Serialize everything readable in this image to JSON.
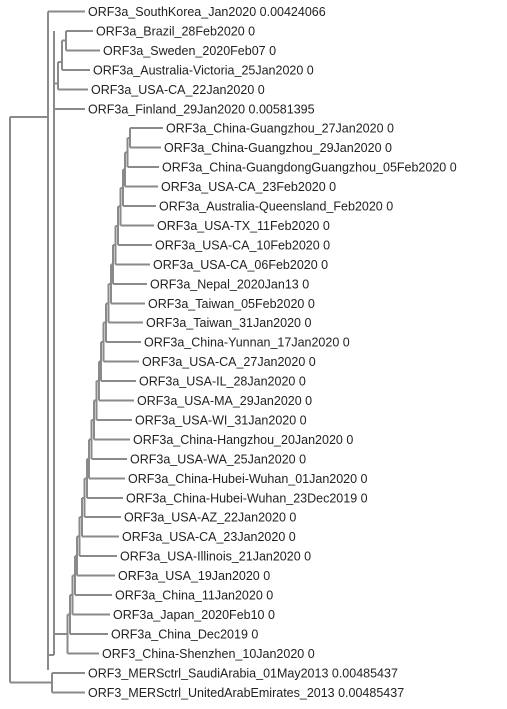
{
  "tree": {
    "leaves": [
      {
        "name": "ORF3a_SouthKorea_Jan2020",
        "value": "0.00424066"
      },
      {
        "name": "ORF3a_Brazil_28Feb2020",
        "value": "0"
      },
      {
        "name": "ORF3a_Sweden_2020Feb07",
        "value": "0"
      },
      {
        "name": "ORF3a_Australia-Victoria_25Jan2020",
        "value": "0"
      },
      {
        "name": "ORF3a_USA-CA_22Jan2020",
        "value": "0"
      },
      {
        "name": "ORF3a_Finland_29Jan2020",
        "value": "0.00581395"
      },
      {
        "name": "ORF3a_China-Guangzhou_27Jan2020",
        "value": "0"
      },
      {
        "name": "ORF3a_China-Guangzhou_29Jan2020",
        "value": "0"
      },
      {
        "name": "ORF3a_China-GuangdongGuangzhou_05Feb2020",
        "value": "0"
      },
      {
        "name": "ORF3a_USA-CA_23Feb2020",
        "value": "0"
      },
      {
        "name": "ORF3a_Australia-Queensland_Feb2020",
        "value": "0"
      },
      {
        "name": "ORF3a_USA-TX_11Feb2020",
        "value": "0"
      },
      {
        "name": "ORF3a_USA-CA_10Feb2020",
        "value": "0"
      },
      {
        "name": "ORF3a_USA-CA_06Feb2020",
        "value": "0"
      },
      {
        "name": "ORF3a_Nepal_2020Jan13",
        "value": "0"
      },
      {
        "name": "ORF3a_Taiwan_05Feb2020",
        "value": "0"
      },
      {
        "name": "ORF3a_Taiwan_31Jan2020",
        "value": "0"
      },
      {
        "name": "ORF3a_China-Yunnan_17Jan2020",
        "value": "0"
      },
      {
        "name": "ORF3a_USA-CA_27Jan2020",
        "value": "0"
      },
      {
        "name": "ORF3a_USA-IL_28Jan2020",
        "value": "0"
      },
      {
        "name": "ORF3a_USA-MA_29Jan2020",
        "value": "0"
      },
      {
        "name": "ORF3a_USA-WI_31Jan2020",
        "value": "0"
      },
      {
        "name": "ORF3a_China-Hangzhou_20Jan2020",
        "value": "0"
      },
      {
        "name": "ORF3a_USA-WA_25Jan2020",
        "value": "0"
      },
      {
        "name": "ORF3a_China-Hubei-Wuhan_01Jan2020",
        "value": "0"
      },
      {
        "name": "ORF3a_China-Hubei-Wuhan_23Dec2019",
        "value": "0"
      },
      {
        "name": "ORF3a_USA-AZ_22Jan2020",
        "value": "0"
      },
      {
        "name": "ORF3a_USA-CA_23Jan2020",
        "value": "0"
      },
      {
        "name": "ORF3a_USA-Illinois_21Jan2020",
        "value": "0"
      },
      {
        "name": "ORF3a_USA_19Jan2020",
        "value": "0"
      },
      {
        "name": "ORF3a_China_11Jan2020",
        "value": "0"
      },
      {
        "name": "ORF3a_Japan_2020Feb10",
        "value": "0"
      },
      {
        "name": "ORF3a_China_Dec2019",
        "value": "0"
      },
      {
        "name": "ORF3_China-Shenzhen_10Jan2020",
        "value": "0"
      },
      {
        "name": "ORF3_MERSctrl_SaudiArabia_01May2013",
        "value": "0.00485437"
      },
      {
        "name": "ORF3_MERSctrl_UnitedArabEmirates_2013",
        "value": "0.00485437"
      }
    ]
  }
}
